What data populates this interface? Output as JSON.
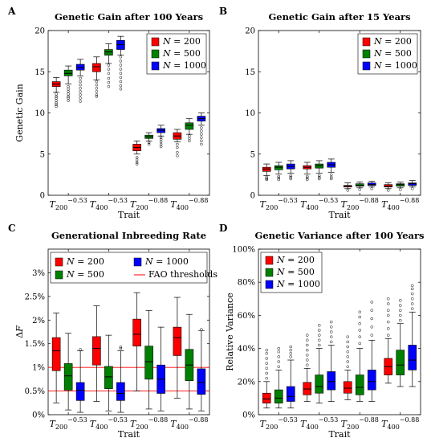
{
  "chart_data": [
    {
      "panel_label": "A",
      "type": "box",
      "title": "Genetic Gain after 100 Years",
      "xlabel": "Trait",
      "ylabel": "Genetic Gain",
      "ylim": [
        0,
        20
      ],
      "yticks": [
        0,
        5,
        10,
        15,
        20
      ],
      "categories": [
        "T200^-0.53",
        "T400^-0.53",
        "T200^-0.88",
        "T400^-0.88"
      ],
      "legend": "top-right",
      "series": [
        {
          "name": "N = 200",
          "color": "#ff0000",
          "boxes": [
            {
              "wlo": 12.5,
              "q1": 13.2,
              "med": 13.5,
              "q3": 13.8,
              "whi": 14.3,
              "out": [
                12.3,
                12.0,
                11.8,
                11.5,
                11.2,
                11.0,
                10.8
              ]
            },
            {
              "wlo": 14.0,
              "q1": 15.0,
              "med": 15.6,
              "q3": 16.0,
              "whi": 16.8,
              "out": [
                13.8,
                13.4,
                13.0,
                12.6,
                12.2,
                12.0
              ]
            },
            {
              "wlo": 5.0,
              "q1": 5.4,
              "med": 5.8,
              "q3": 6.2,
              "whi": 6.6,
              "out": [
                4.6,
                4.3,
                4.0,
                3.8
              ]
            },
            {
              "wlo": 6.5,
              "q1": 6.8,
              "med": 7.2,
              "q3": 7.6,
              "whi": 8.0,
              "out": [
                6.2,
                5.8,
                5.2,
                4.8
              ]
            }
          ]
        },
        {
          "name": "N = 500",
          "color": "#008000",
          "boxes": [
            {
              "wlo": 13.5,
              "q1": 14.5,
              "med": 14.8,
              "q3": 15.2,
              "whi": 15.7,
              "out": [
                13.2,
                12.9,
                12.6,
                12.3,
                12.0,
                11.8,
                11.5
              ]
            },
            {
              "wlo": 16.0,
              "q1": 17.0,
              "med": 17.4,
              "q3": 17.7,
              "whi": 18.4,
              "out": [
                15.8,
                15.3,
                14.8,
                14.2,
                13.7,
                13.2
              ]
            },
            {
              "wlo": 6.6,
              "q1": 6.9,
              "med": 7.1,
              "q3": 7.3,
              "whi": 7.6,
              "out": [
                6.4,
                6.2
              ]
            },
            {
              "wlo": 7.4,
              "q1": 8.0,
              "med": 8.5,
              "q3": 8.8,
              "whi": 9.3,
              "out": [
                7.2,
                6.9,
                6.6
              ]
            }
          ]
        },
        {
          "name": "N = 1000",
          "color": "#0000ff",
          "boxes": [
            {
              "wlo": 14.5,
              "q1": 15.2,
              "med": 15.5,
              "q3": 15.9,
              "whi": 16.5,
              "out": [
                14.2,
                13.8,
                13.4,
                13.0,
                12.6,
                12.2,
                11.8,
                11.4
              ]
            },
            {
              "wlo": 17.0,
              "q1": 17.7,
              "med": 18.3,
              "q3": 18.8,
              "whi": 19.3,
              "out": [
                16.8,
                16.3,
                15.8,
                15.3,
                14.8,
                14.3,
                13.8,
                13.3,
                12.9
              ]
            },
            {
              "wlo": 7.2,
              "q1": 7.6,
              "med": 7.9,
              "q3": 8.1,
              "whi": 8.5,
              "out": [
                7.0,
                6.8,
                6.5,
                6.2,
                5.9
              ]
            },
            {
              "wlo": 8.5,
              "q1": 9.0,
              "med": 9.3,
              "q3": 9.6,
              "whi": 10.0,
              "out": [
                8.2,
                7.8,
                7.4,
                7.0,
                6.6,
                6.2
              ]
            }
          ]
        }
      ]
    },
    {
      "panel_label": "B",
      "type": "box",
      "title": "Genetic Gain after 15 Years",
      "xlabel": "Trait",
      "ylabel": "",
      "ylim": [
        0,
        20
      ],
      "yticks": [
        0,
        5,
        10,
        15,
        20
      ],
      "categories": [
        "T200^-0.53",
        "T400^-0.53",
        "T200^-0.88",
        "T400^-0.88"
      ],
      "legend": "top-right",
      "series": [
        {
          "name": "N = 200",
          "color": "#ff0000",
          "boxes": [
            {
              "wlo": 2.4,
              "q1": 2.9,
              "med": 3.2,
              "q3": 3.4,
              "whi": 3.8,
              "out": [
                2.2,
                2.0,
                1.9
              ]
            },
            {
              "wlo": 2.6,
              "q1": 3.2,
              "med": 3.4,
              "q3": 3.6,
              "whi": 4.0,
              "out": [
                2.3,
                2.1,
                1.9
              ]
            },
            {
              "wlo": 0.8,
              "q1": 1.0,
              "med": 1.1,
              "q3": 1.2,
              "whi": 1.5,
              "out": [
                0.6
              ]
            },
            {
              "wlo": 0.8,
              "q1": 1.0,
              "med": 1.1,
              "q3": 1.3,
              "whi": 1.5,
              "out": [
                0.6
              ]
            }
          ]
        },
        {
          "name": "N = 500",
          "color": "#008000",
          "boxes": [
            {
              "wlo": 2.6,
              "q1": 3.1,
              "med": 3.4,
              "q3": 3.6,
              "whi": 4.0,
              "out": [
                2.3,
                2.1,
                1.9
              ]
            },
            {
              "wlo": 2.7,
              "q1": 3.3,
              "med": 3.6,
              "q3": 3.8,
              "whi": 4.2,
              "out": [
                2.4,
                2.2,
                2.0
              ]
            },
            {
              "wlo": 0.9,
              "q1": 1.1,
              "med": 1.2,
              "q3": 1.4,
              "whi": 1.6,
              "out": [
                0.7
              ]
            },
            {
              "wlo": 0.9,
              "q1": 1.1,
              "med": 1.3,
              "q3": 1.4,
              "whi": 1.6,
              "out": [
                0.7
              ]
            }
          ]
        },
        {
          "name": "N = 1000",
          "color": "#0000ff",
          "boxes": [
            {
              "wlo": 2.7,
              "q1": 3.2,
              "med": 3.5,
              "q3": 3.8,
              "whi": 4.2,
              "out": [
                2.4,
                2.2,
                2.0
              ]
            },
            {
              "wlo": 2.8,
              "q1": 3.4,
              "med": 3.7,
              "q3": 4.0,
              "whi": 4.4,
              "out": [
                2.5,
                2.2,
                2.0
              ]
            },
            {
              "wlo": 1.0,
              "q1": 1.2,
              "med": 1.3,
              "q3": 1.5,
              "whi": 1.7,
              "out": [
                0.8
              ]
            },
            {
              "wlo": 1.0,
              "q1": 1.2,
              "med": 1.4,
              "q3": 1.5,
              "whi": 1.8,
              "out": [
                0.8
              ]
            }
          ]
        }
      ]
    },
    {
      "panel_label": "C",
      "type": "box",
      "title": "Generational Inbreeding Rate",
      "xlabel": "Trait",
      "ylabel": "ΔF",
      "ylim": [
        0,
        3.5
      ],
      "yticks": [
        0,
        0.5,
        1,
        1.5,
        2,
        2.5,
        3
      ],
      "ytick_labels": [
        "0%",
        "0.5%",
        "1%",
        "1.5%",
        "2%",
        "2.5%",
        "3%"
      ],
      "thresholds": [
        0.5,
        1.0
      ],
      "threshold_label": "FAO thresholds",
      "threshold_color": "#ff0000",
      "categories": [
        "T200^-0.53",
        "T400^-0.53",
        "T200^-0.88",
        "T400^-0.88"
      ],
      "legend": "top",
      "series": [
        {
          "name": "N = 200",
          "color": "#ff0000",
          "boxes": [
            {
              "wlo": 0.25,
              "q1": 0.93,
              "med": 1.35,
              "q3": 1.63,
              "whi": 2.15,
              "out": []
            },
            {
              "wlo": 0.28,
              "q1": 1.05,
              "med": 1.4,
              "q3": 1.65,
              "whi": 2.3,
              "out": []
            },
            {
              "wlo": 0.5,
              "q1": 1.45,
              "med": 1.7,
              "q3": 2.02,
              "whi": 2.58,
              "out": []
            },
            {
              "wlo": 0.35,
              "q1": 1.25,
              "med": 1.63,
              "q3": 1.85,
              "whi": 2.48,
              "out": []
            }
          ]
        },
        {
          "name": "N = 500",
          "color": "#008000",
          "boxes": [
            {
              "wlo": 0.1,
              "q1": 0.52,
              "med": 0.82,
              "q3": 1.08,
              "whi": 1.72,
              "out": []
            },
            {
              "wlo": 0.08,
              "q1": 0.55,
              "med": 0.8,
              "q3": 1.02,
              "whi": 1.68,
              "out": []
            },
            {
              "wlo": 0.12,
              "q1": 0.75,
              "med": 1.12,
              "q3": 1.45,
              "whi": 2.2,
              "out": []
            },
            {
              "wlo": 0.12,
              "q1": 0.72,
              "med": 1.05,
              "q3": 1.38,
              "whi": 2.12,
              "out": []
            }
          ]
        },
        {
          "name": "N = 1000",
          "color": "#0000ff",
          "boxes": [
            {
              "wlo": 0.05,
              "q1": 0.3,
              "med": 0.52,
              "q3": 0.68,
              "whi": 1.35,
              "out": [
                1.38
              ]
            },
            {
              "wlo": 0.05,
              "q1": 0.3,
              "med": 0.45,
              "q3": 0.68,
              "whi": 1.35,
              "out": [
                1.4,
                1.43
              ]
            },
            {
              "wlo": 0.08,
              "q1": 0.45,
              "med": 0.75,
              "q3": 1.05,
              "whi": 1.85,
              "out": []
            },
            {
              "wlo": 0.08,
              "q1": 0.43,
              "med": 0.68,
              "q3": 0.97,
              "whi": 1.78,
              "out": [
                1.8
              ]
            }
          ]
        }
      ]
    },
    {
      "panel_label": "D",
      "type": "box",
      "title": "Genetic Variance after 100 Years",
      "xlabel": "Trait",
      "ylabel": "Relative Variance",
      "ylim": [
        0,
        100
      ],
      "yticks": [
        0,
        20,
        40,
        60,
        80,
        100
      ],
      "ytick_labels": [
        "0%",
        "20%",
        "40%",
        "60%",
        "80%",
        "100%"
      ],
      "categories": [
        "T200^-0.53",
        "T400^-0.53",
        "T200^-0.88",
        "T400^-0.88"
      ],
      "legend": "top-left",
      "series": [
        {
          "name": "N = 200",
          "color": "#ff0000",
          "boxes": [
            {
              "wlo": 4,
              "q1": 7,
              "med": 9.5,
              "q3": 13,
              "whi": 20,
              "out": [
                22,
                25,
                28,
                31,
                34,
                37,
                39
              ]
            },
            {
              "wlo": 8,
              "q1": 12,
              "med": 15.5,
              "q3": 19.5,
              "whi": 28,
              "out": [
                30,
                33,
                36,
                39,
                42,
                45,
                48
              ]
            },
            {
              "wlo": 9,
              "q1": 13,
              "med": 16,
              "q3": 20,
              "whi": 27,
              "out": [
                29,
                32,
                35,
                38,
                41,
                44,
                47
              ]
            },
            {
              "wlo": 19,
              "q1": 24,
              "med": 29,
              "q3": 34,
              "whi": 46,
              "out": [
                48,
                52,
                56,
                60,
                63,
                67,
                70
              ]
            }
          ]
        },
        {
          "name": "N = 500",
          "color": "#008000",
          "boxes": [
            {
              "wlo": 4,
              "q1": 7,
              "med": 10,
              "q3": 15,
              "whi": 27,
              "out": [
                29,
                32,
                35,
                38,
                40
              ]
            },
            {
              "wlo": 7,
              "q1": 13,
              "med": 17,
              "q3": 24,
              "whi": 40,
              "out": [
                42,
                45,
                48,
                51,
                54
              ]
            },
            {
              "wlo": 8,
              "q1": 12,
              "med": 16.5,
              "q3": 24,
              "whi": 40,
              "out": [
                43,
                47,
                51,
                55,
                59,
                62
              ]
            },
            {
              "wlo": 17,
              "q1": 24,
              "med": 30,
              "q3": 39,
              "whi": 55,
              "out": [
                57,
                60,
                63,
                66,
                69
              ]
            }
          ]
        },
        {
          "name": "N = 1000",
          "color": "#0000ff",
          "boxes": [
            {
              "wlo": 4,
              "q1": 8,
              "med": 11,
              "q3": 17,
              "whi": 33,
              "out": [
                35,
                37,
                39,
                41
              ]
            },
            {
              "wlo": 8,
              "q1": 15,
              "med": 20,
              "q3": 26,
              "whi": 42,
              "out": [
                44,
                47,
                50,
                53,
                56
              ]
            },
            {
              "wlo": 8,
              "q1": 15,
              "med": 20,
              "q3": 27,
              "whi": 45,
              "out": [
                48,
                53,
                58,
                63,
                68
              ]
            },
            {
              "wlo": 17,
              "q1": 27,
              "med": 33,
              "q3": 42,
              "whi": 62,
              "out": [
                64,
                67,
                70,
                73,
                76,
                78
              ]
            }
          ]
        }
      ]
    }
  ]
}
